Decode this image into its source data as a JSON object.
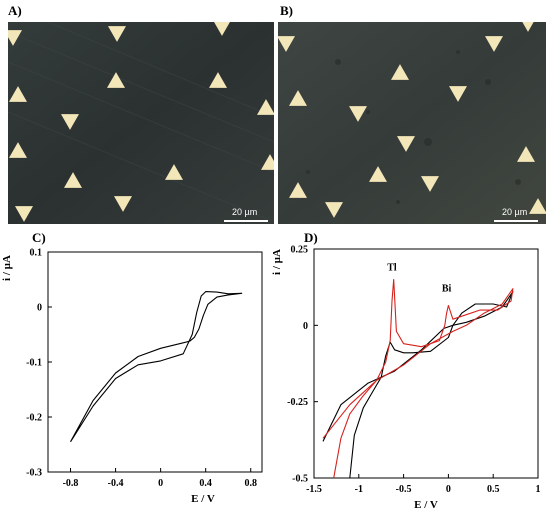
{
  "panels": {
    "a": {
      "label": "A)",
      "scale_text": "20 µm"
    },
    "b": {
      "label": "B)",
      "scale_text": "20 µm"
    },
    "c": {
      "label": "C)"
    },
    "d": {
      "label": "D)"
    }
  },
  "colors": {
    "black_curve": "#000000",
    "red_curve": "#d6221d",
    "micro_bg_a": "#2f3536",
    "micro_bg_b": "#3a403e",
    "triangle": "#f3e6b8"
  },
  "chart_data": [
    {
      "type": "line",
      "panel": "C",
      "xlabel": "E / V",
      "ylabel": "i / µA",
      "xlim": [
        -1.0,
        0.9
      ],
      "ylim": [
        -0.3,
        0.1
      ],
      "xticks": [
        -0.8,
        -0.4,
        0,
        0.4,
        0.8
      ],
      "xtick_labels": [
        "-0.8",
        "-0.4",
        "0",
        "0.4",
        "0.8"
      ],
      "yticks": [
        0.1,
        0,
        -0.1,
        -0.2,
        -0.3
      ],
      "ytick_labels": [
        "0.1",
        "0",
        "-0.1",
        "-0.2",
        "-0.3"
      ],
      "grid": false,
      "series": [
        {
          "color": "#000000",
          "x": [
            -0.8,
            -0.6,
            -0.4,
            -0.2,
            0.0,
            0.2,
            0.28,
            0.32,
            0.36,
            0.4,
            0.5,
            0.6,
            0.72,
            0.72,
            0.6,
            0.5,
            0.42,
            0.38,
            0.34,
            0.3,
            0.26,
            0.2,
            0.0,
            -0.2,
            -0.4,
            -0.6,
            -0.8
          ],
          "y": [
            -0.245,
            -0.18,
            -0.13,
            -0.105,
            -0.098,
            -0.085,
            -0.05,
            -0.01,
            0.02,
            0.028,
            0.027,
            0.024,
            0.025,
            0.025,
            0.022,
            0.018,
            0.005,
            -0.015,
            -0.04,
            -0.055,
            -0.062,
            -0.065,
            -0.075,
            -0.09,
            -0.12,
            -0.17,
            -0.245
          ]
        }
      ]
    },
    {
      "type": "line",
      "panel": "D",
      "xlabel": "E / V",
      "ylabel": "i / µA",
      "xlim": [
        -1.5,
        1.0
      ],
      "ylim": [
        -0.5,
        0.25
      ],
      "xticks": [
        -1.5,
        -1,
        -0.5,
        0,
        0.5,
        1
      ],
      "xtick_labels": [
        "-1.5",
        "-1",
        "-0.5",
        "0",
        "0.5",
        "1"
      ],
      "yticks": [
        0.25,
        0,
        -0.25,
        -0.5
      ],
      "ytick_labels": [
        "0.25",
        "0",
        "-0.25",
        "-0.5"
      ],
      "grid": false,
      "annotations": [
        {
          "text": "Tl",
          "x": -0.63,
          "y": 0.18
        },
        {
          "text": "Bi",
          "x": -0.02,
          "y": 0.11
        }
      ],
      "series": [
        {
          "color": "#000000",
          "x": [
            -1.1,
            -1.05,
            -0.95,
            -0.85,
            -0.75,
            -0.7,
            -0.65,
            -0.6,
            -0.5,
            -0.4,
            -0.2,
            0.0,
            0.05,
            0.15,
            0.3,
            0.5,
            0.65,
            0.72,
            0.72,
            0.6,
            0.4,
            0.2,
            0.05,
            -0.05,
            -0.3,
            -0.6,
            -0.9,
            -1.2,
            -1.4
          ],
          "y": [
            -0.5,
            -0.36,
            -0.27,
            -0.22,
            -0.17,
            -0.1,
            -0.055,
            -0.08,
            -0.09,
            -0.09,
            -0.085,
            -0.04,
            0.0,
            0.04,
            0.07,
            0.07,
            0.06,
            0.11,
            0.11,
            0.06,
            0.03,
            0.01,
            0.0,
            -0.01,
            -0.08,
            -0.15,
            -0.19,
            -0.26,
            -0.38
          ]
        },
        {
          "color": "#d6221d",
          "x": [
            -1.28,
            -1.2,
            -1.1,
            -0.95,
            -0.8,
            -0.7,
            -0.65,
            -0.63,
            -0.61,
            -0.58,
            -0.5,
            -0.3,
            -0.1,
            -0.04,
            -0.02,
            0.0,
            0.05,
            0.15,
            0.35,
            0.55,
            0.7,
            0.72,
            0.72,
            0.6,
            0.4,
            0.2,
            0.05,
            -0.2,
            -0.5,
            -0.8,
            -1.1,
            -1.4
          ],
          "y": [
            -0.5,
            -0.37,
            -0.29,
            -0.23,
            -0.18,
            -0.12,
            -0.05,
            0.08,
            0.15,
            -0.02,
            -0.06,
            -0.07,
            -0.05,
            0.0,
            0.04,
            0.065,
            0.02,
            0.03,
            0.05,
            0.05,
            0.08,
            0.12,
            0.12,
            0.07,
            0.04,
            0.0,
            -0.02,
            -0.06,
            -0.13,
            -0.18,
            -0.26,
            -0.37
          ]
        }
      ]
    }
  ]
}
